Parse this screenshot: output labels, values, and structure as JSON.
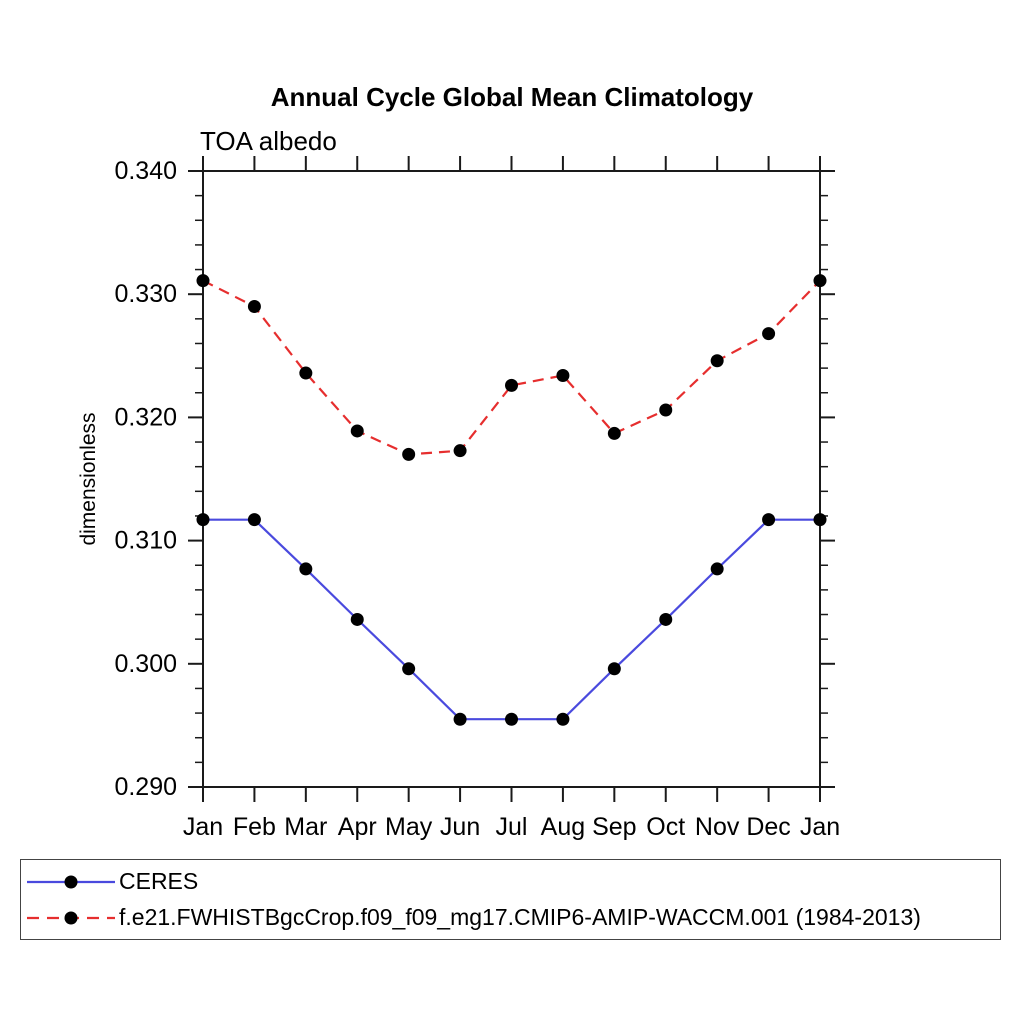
{
  "title": "Annual Cycle Global Mean Climatology",
  "subtitle": "TOA albedo",
  "chart_data": {
    "type": "line",
    "title": "Annual Cycle Global Mean Climatology",
    "subtitle": "TOA albedo",
    "xlabel": "",
    "ylabel": "dimensionless",
    "categories": [
      "Jan",
      "Feb",
      "Mar",
      "Apr",
      "May",
      "Jun",
      "Jul",
      "Aug",
      "Sep",
      "Oct",
      "Nov",
      "Dec",
      "Jan"
    ],
    "ylim": [
      0.29,
      0.34
    ],
    "ytick_interval": 0.01,
    "yminor_interval": 0.002,
    "ytick_labels": [
      "0.290",
      "0.300",
      "0.310",
      "0.320",
      "0.330",
      "0.340"
    ],
    "grid": false,
    "legend_position": "bottom-box",
    "axis_color": "#1a1a1a",
    "marker": "filled-circle",
    "marker_color": "#000000",
    "series": [
      {
        "name": "CERES",
        "color": "#4a4ade",
        "style": "solid",
        "values": [
          0.3117,
          0.3117,
          0.3077,
          0.3036,
          0.2996,
          0.2955,
          0.2955,
          0.2955,
          0.2996,
          0.3036,
          0.3077,
          0.3117,
          0.3117
        ]
      },
      {
        "name": "f.e21.FWHISTBgcCrop.f09_f09_mg17.CMIP6-AMIP-WACCM.001 (1984-2013)",
        "color": "#e62e2e",
        "style": "dashed",
        "values": [
          0.3311,
          0.329,
          0.3236,
          0.3189,
          0.317,
          0.3173,
          0.3226,
          0.3234,
          0.3187,
          0.3206,
          0.3246,
          0.3268,
          0.3311
        ]
      }
    ]
  }
}
